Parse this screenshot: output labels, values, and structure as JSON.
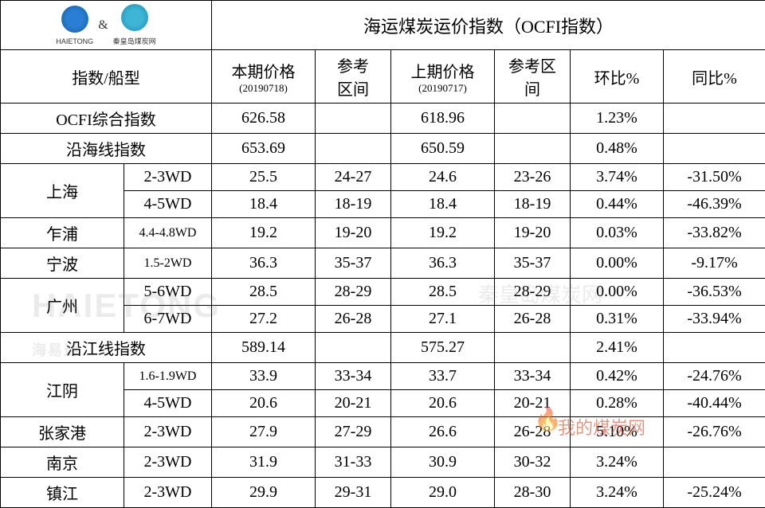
{
  "title": "海运煤炭运价指数（OCFI指数）",
  "logos": {
    "left_text": "HAIETONG",
    "left_sub": "海易通",
    "amp": "&",
    "right_sub": "秦皇岛煤炭网"
  },
  "headers": {
    "index_ship": "指数/船型",
    "current_price": "本期价格",
    "current_date": "(20190718)",
    "ref_range1": "参考\n区间",
    "prev_price": "上期价格",
    "prev_date": "(20190717)",
    "ref_range2": "参考区\n间",
    "mom": "环比%",
    "yoy": "同比%"
  },
  "rows": [
    {
      "name": "OCFI综合指数",
      "ship": "",
      "cur": "626.58",
      "ref1": "",
      "prev": "618.96",
      "ref2": "",
      "mom": "1.23%",
      "yoy": ""
    },
    {
      "name": "沿海线指数",
      "ship": "",
      "cur": "653.69",
      "ref1": "",
      "prev": "650.59",
      "ref2": "",
      "mom": "0.48%",
      "yoy": ""
    }
  ],
  "groups": [
    {
      "name": "上海",
      "sub": [
        {
          "ship": "2-3WD",
          "cur": "25.5",
          "ref1": "24-27",
          "prev": "24.6",
          "ref2": "23-26",
          "mom": "3.74%",
          "yoy": "-31.50%"
        },
        {
          "ship": "4-5WD",
          "cur": "18.4",
          "ref1": "18-19",
          "prev": "18.4",
          "ref2": "18-19",
          "mom": "0.44%",
          "yoy": "-46.39%"
        }
      ]
    },
    {
      "name": "乍浦",
      "sub": [
        {
          "ship": "4.4-4.8WD",
          "cur": "19.2",
          "ref1": "19-20",
          "prev": "19.2",
          "ref2": "19-20",
          "mom": "0.03%",
          "yoy": "-33.82%",
          "small": true
        }
      ]
    },
    {
      "name": "宁波",
      "sub": [
        {
          "ship": "1.5-2WD",
          "cur": "36.3",
          "ref1": "35-37",
          "prev": "36.3",
          "ref2": "35-37",
          "mom": "0.00%",
          "yoy": "-9.17%",
          "small": true
        }
      ]
    },
    {
      "name": "广州",
      "sub": [
        {
          "ship": "5-6WD",
          "cur": "28.5",
          "ref1": "28-29",
          "prev": "28.5",
          "ref2": "28-29",
          "mom": "0.00%",
          "yoy": "-36.53%"
        },
        {
          "ship": "6-7WD",
          "cur": "27.2",
          "ref1": "26-28",
          "prev": "27.1",
          "ref2": "26-28",
          "mom": "0.31%",
          "yoy": "-33.94%"
        }
      ]
    }
  ],
  "river_row": {
    "name": "沿江线指数",
    "ship": "",
    "cur": "589.14",
    "ref1": "",
    "prev": "575.27",
    "ref2": "",
    "mom": "2.41%",
    "yoy": ""
  },
  "groups2": [
    {
      "name": "江阴",
      "sub": [
        {
          "ship": "1.6-1.9WD",
          "cur": "33.9",
          "ref1": "33-34",
          "prev": "33.7",
          "ref2": "33-34",
          "mom": "0.42%",
          "yoy": "-24.76%",
          "small": true
        },
        {
          "ship": "4-5WD",
          "cur": "20.6",
          "ref1": "20-21",
          "prev": "20.6",
          "ref2": "20-21",
          "mom": "0.28%",
          "yoy": "-40.44%"
        }
      ]
    },
    {
      "name": "张家港",
      "sub": [
        {
          "ship": "2-3WD",
          "cur": "27.9",
          "ref1": "27-29",
          "prev": "26.6",
          "ref2": "26-28",
          "mom": "5.10%",
          "yoy": "-26.76%"
        }
      ]
    },
    {
      "name": "南京",
      "sub": [
        {
          "ship": "2-3WD",
          "cur": "31.9",
          "ref1": "31-33",
          "prev": "30.9",
          "ref2": "30-32",
          "mom": "3.24%",
          "yoy": ""
        }
      ]
    },
    {
      "name": "镇江",
      "sub": [
        {
          "ship": "2-3WD",
          "cur": "29.9",
          "ref1": "29-31",
          "prev": "29.0",
          "ref2": "28-30",
          "mom": "3.24%",
          "yoy": "-25.24%"
        }
      ]
    }
  ],
  "watermarks": {
    "wm1": "HAIETONG",
    "wm1_sub": "海易通",
    "wm2": "秦皇岛煤炭网",
    "wm3": "我的煤炭网"
  }
}
